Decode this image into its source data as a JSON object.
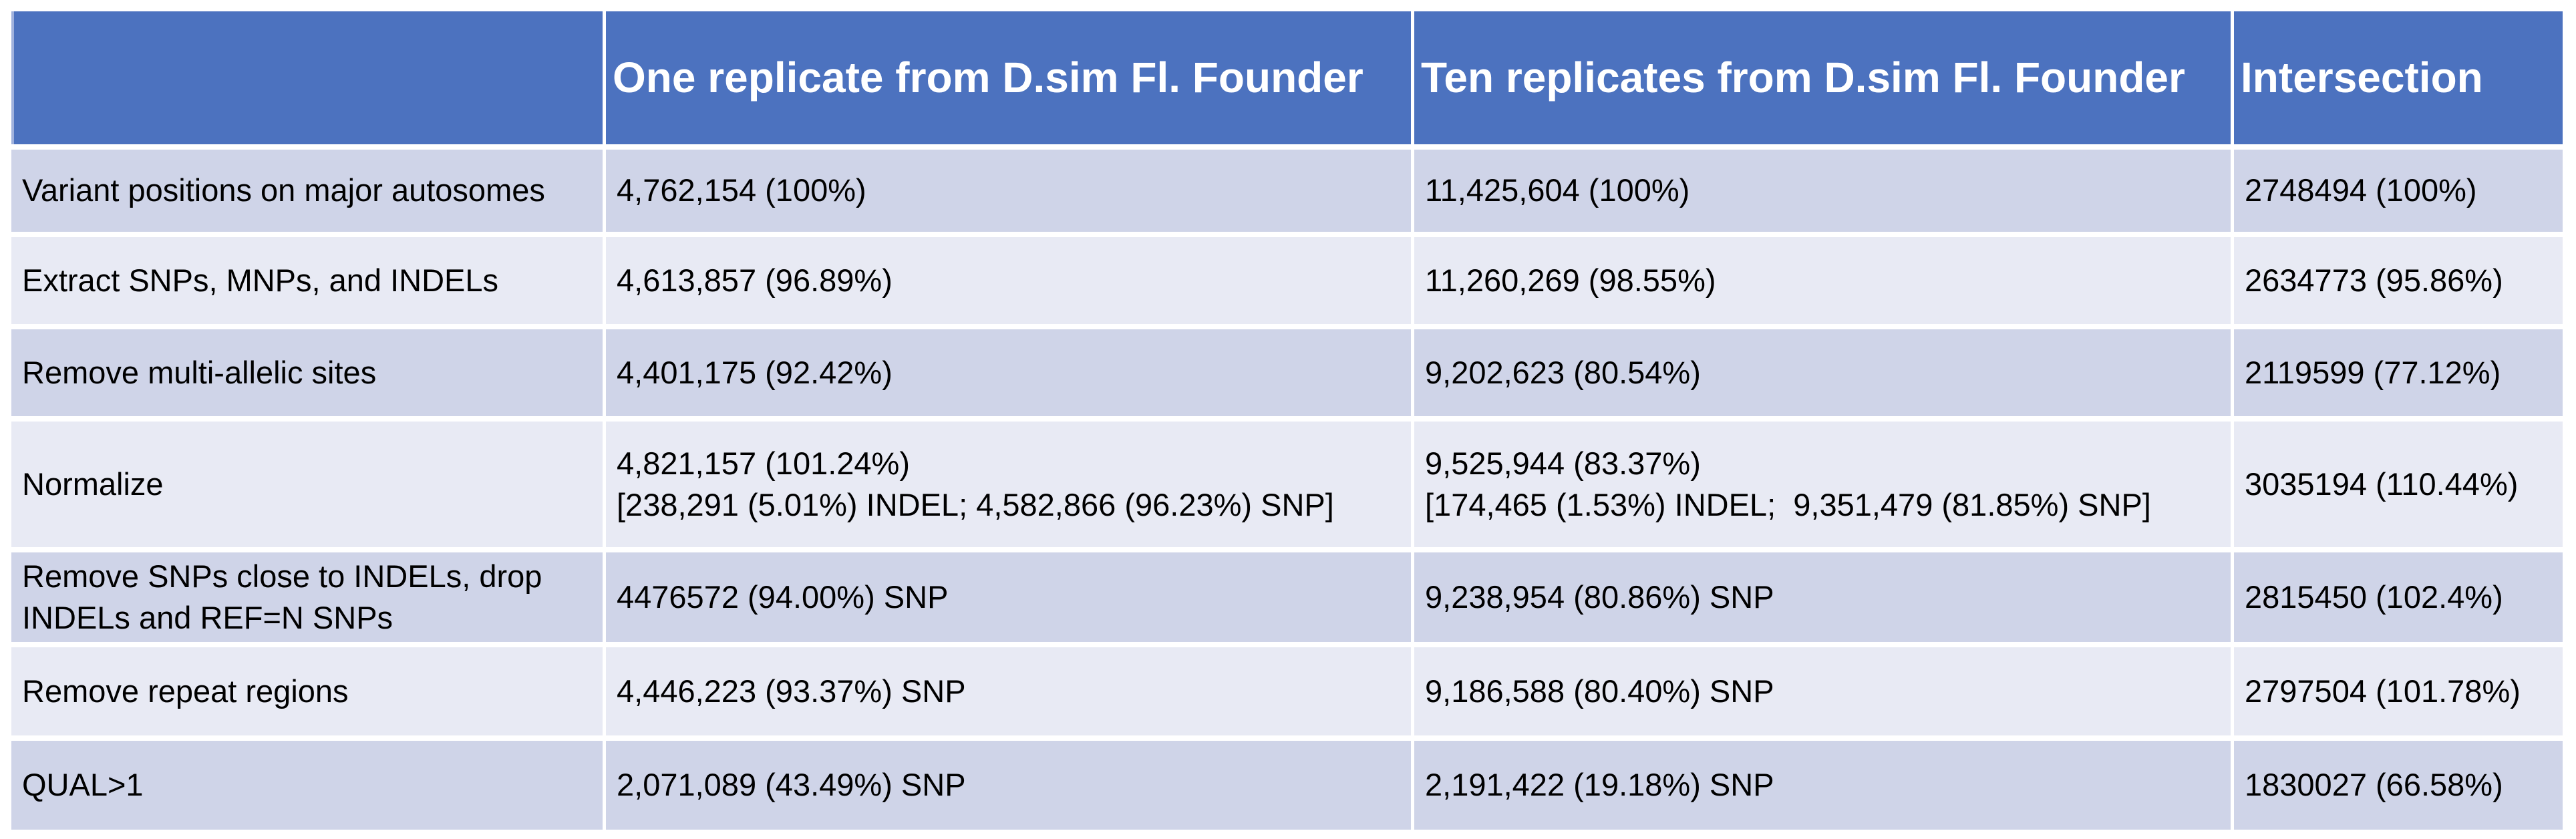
{
  "colors": {
    "header_bg": "#4C72BF",
    "header_text": "#FFFFFF",
    "band_dark": "#CFD4E8",
    "band_light": "#E8EAF4",
    "body_text": "#000000",
    "header_left_accent": "#9FB1DD",
    "page_background": "#FFFFFF"
  },
  "header": {
    "blank": "",
    "col1": "One replicate from D.sim Fl. Founder",
    "col2": "Ten replicates from D.sim Fl. Founder",
    "col3": "Intersection"
  },
  "rows": [
    {
      "label": "Variant positions on major autosomes",
      "values": [
        "4,762,154 (100%)",
        "11,425,604 (100%)",
        "2748494 (100%)"
      ]
    },
    {
      "label": "Extract SNPs, MNPs, and INDELs",
      "values": [
        "4,613,857 (96.89%)",
        "11,260,269 (98.55%)",
        "2634773 (95.86%)"
      ]
    },
    {
      "label": "Remove multi-allelic sites",
      "values": [
        "4,401,175 (92.42%)",
        "9,202,623 (80.54%)",
        "2119599 (77.12%)"
      ]
    },
    {
      "label": "Normalize",
      "values": [
        "4,821,157 (101.24%)\n[238,291 (5.01%) INDEL; 4,582,866 (96.23%) SNP]",
        "9,525,944 (83.37%)\n[174,465 (1.53%) INDEL;  9,351,479 (81.85%) SNP]",
        "3035194 (110.44%)"
      ]
    },
    {
      "label": "Remove SNPs close to INDELs, drop INDELs and REF=N SNPs",
      "values": [
        "4476572 (94.00%) SNP",
        "9,238,954 (80.86%) SNP",
        "2815450 (102.4%)"
      ]
    },
    {
      "label": "Remove repeat regions",
      "values": [
        "4,446,223 (93.37%) SNP",
        "9,186,588 (80.40%) SNP",
        "2797504 (101.78%)"
      ]
    },
    {
      "label": "QUAL>1",
      "values": [
        "2,071,089 (43.49%) SNP",
        "2,191,422 (19.18%) SNP",
        "1830027 (66.58%)"
      ]
    }
  ]
}
